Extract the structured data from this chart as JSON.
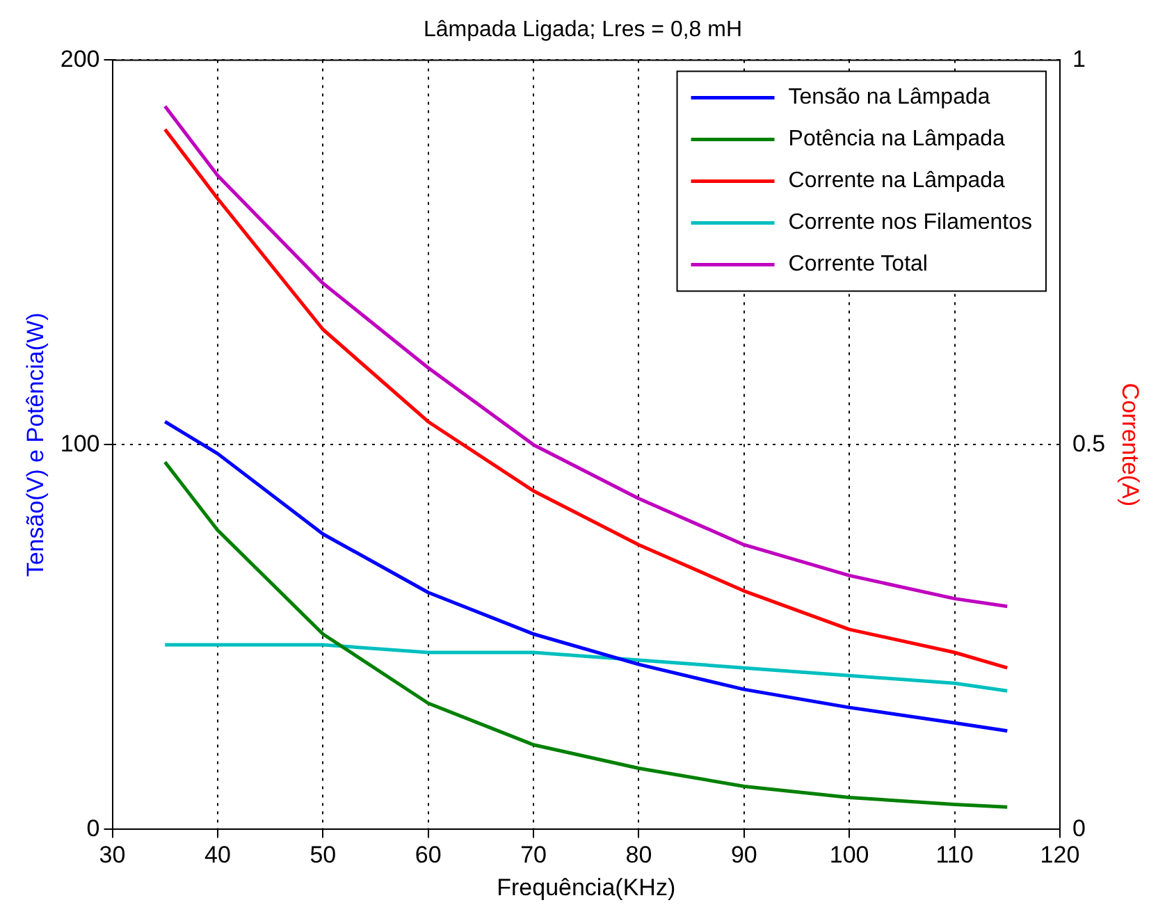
{
  "chart_data": {
    "type": "line",
    "title": "Lâmpada Ligada; Lres = 0,8 mH",
    "xlabel": "Frequência(KHz)",
    "ylabel": "Tensão(V) e Potência(W)",
    "y2label": "Corrente(A)",
    "x": [
      35,
      40,
      50,
      60,
      70,
      80,
      90,
      100,
      110,
      115
    ],
    "xlim": [
      30,
      120
    ],
    "xticks": [
      30,
      40,
      50,
      60,
      70,
      80,
      90,
      100,
      110,
      120
    ],
    "ylim": [
      0,
      200
    ],
    "yticks": [
      0,
      100,
      200
    ],
    "y2lim": [
      0,
      1
    ],
    "y2ticks": [
      0,
      0.5,
      1
    ],
    "grid": true,
    "legend": "top right",
    "line_style": "solid",
    "marker": "none",
    "series": [
      {
        "name": "Tensão na Lâmpada",
        "color": "#0000ff",
        "values": [
          106,
          97.7,
          76.8,
          61.6,
          50.8,
          42.9,
          36.4,
          31.7,
          27.7,
          25.6
        ]
      },
      {
        "name": "Potência na Lâmpada",
        "color": "#008000",
        "values": [
          95.5,
          77.8,
          50.8,
          32.8,
          22,
          15.9,
          11.2,
          8.3,
          6.5,
          5.8
        ]
      },
      {
        "name": "Corrente na Lâmpada",
        "color": "#ff0000",
        "axis": "y2",
        "values": [
          0.91,
          0.82,
          0.65,
          0.53,
          0.44,
          0.37,
          0.31,
          0.26,
          0.23,
          0.21
        ]
      },
      {
        "name": "Corrente nos Filamentos",
        "color": "#00bfbf",
        "axis": "y2",
        "values": [
          0.24,
          0.24,
          0.24,
          0.23,
          0.23,
          0.22,
          0.21,
          0.2,
          0.19,
          0.18
        ]
      },
      {
        "name": "Corrente Total",
        "color": "#bf00bf",
        "axis": "y2",
        "values": [
          0.94,
          0.85,
          0.71,
          0.6,
          0.5,
          0.43,
          0.37,
          0.33,
          0.3,
          0.29
        ]
      }
    ]
  }
}
